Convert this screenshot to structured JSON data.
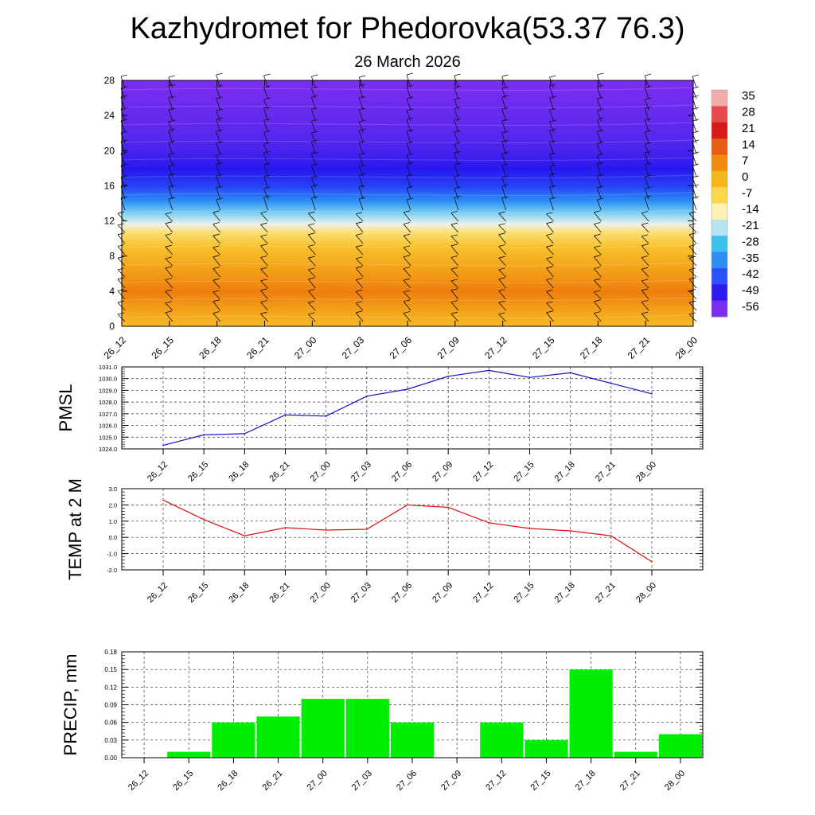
{
  "header": {
    "title": "Kazhydromet for Phedorovka(53.37 76.3)",
    "subtitle": "26 March 2026"
  },
  "time_labels": [
    "26_12",
    "26_15",
    "26_18",
    "26_21",
    "27_00",
    "27_03",
    "27_06",
    "27_09",
    "27_12",
    "27_15",
    "27_18",
    "27_21",
    "28_00"
  ],
  "chart_data": [
    {
      "type": "heatmap",
      "name": "cross-section",
      "xlabels": [
        "26_12",
        "26_15",
        "26_18",
        "26_21",
        "27_00",
        "27_03",
        "27_06",
        "27_09",
        "27_12",
        "27_15",
        "27_18",
        "27_21",
        "28_00"
      ],
      "ylim": [
        0,
        28
      ],
      "yticks": [
        "0",
        "4",
        "8",
        "12",
        "16",
        "20",
        "24",
        "28"
      ],
      "colorbar_labels": [
        "35",
        "28",
        "21",
        "14",
        "7",
        "0",
        "-7",
        "-14",
        "-21",
        "-28",
        "-35",
        "-42",
        "-49",
        "-56"
      ],
      "colorbar_colors": [
        "#f2aaaa",
        "#e84a4a",
        "#d61919",
        "#e85c10",
        "#f38a12",
        "#f7b61b",
        "#fad84a",
        "#fdf2b4",
        "#b5e4f0",
        "#3cc0ec",
        "#2a8ff0",
        "#2b52f8",
        "#2c1cf0",
        "#7d2df0"
      ],
      "colormap": "#7d2df0"
    },
    {
      "type": "line",
      "name": "pmsl",
      "ylabel": "PMSL",
      "categories": [
        "26_12",
        "26_15",
        "26_18",
        "26_21",
        "27_00",
        "27_03",
        "27_06",
        "27_09",
        "27_12",
        "27_15",
        "27_18",
        "27_21",
        "28_00"
      ],
      "values": [
        1024.3,
        1025.2,
        1025.3,
        1026.9,
        1026.8,
        1028.5,
        1029.1,
        1030.2,
        1030.7,
        1030.1,
        1030.5,
        1029.6,
        1028.7
      ],
      "ylim": [
        1024.0,
        1031.0
      ],
      "yticks": [
        "1024.0",
        "1025.0",
        "1026.0",
        "1027.0",
        "1028.0",
        "1029.0",
        "1030.0",
        "1031.0"
      ],
      "color": "#1010cc"
    },
    {
      "type": "line",
      "name": "temp",
      "ylabel": "TEMP at 2 M",
      "categories": [
        "26_12",
        "26_15",
        "26_18",
        "26_21",
        "27_00",
        "27_03",
        "27_06",
        "27_09",
        "27_12",
        "27_15",
        "27_18",
        "27_21",
        "28_00"
      ],
      "values": [
        2.3,
        1.1,
        0.1,
        0.6,
        0.45,
        0.5,
        2.0,
        1.85,
        0.9,
        0.55,
        0.4,
        0.1,
        -1.5
      ],
      "ylim": [
        -2.0,
        3.0
      ],
      "yticks": [
        "-2.0",
        "-1.0",
        "0.0",
        "1.0",
        "2.0",
        "3.0"
      ],
      "color": "#e01010"
    },
    {
      "type": "bar",
      "name": "precip",
      "ylabel": "PRECIP, mm",
      "categories": [
        "26_12",
        "26_15",
        "26_18",
        "26_21",
        "27_00",
        "27_03",
        "27_06",
        "27_09",
        "27_12",
        "27_15",
        "27_18",
        "27_21",
        "28_00"
      ],
      "values": [
        0.0,
        0.01,
        0.06,
        0.07,
        0.1,
        0.1,
        0.06,
        0.0,
        0.06,
        0.03,
        0.15,
        0.01,
        0.04
      ],
      "ylim": [
        0.0,
        0.18
      ],
      "yticks": [
        "0.00",
        "0.03",
        "0.06",
        "0.09",
        "0.12",
        "0.15",
        "0.18"
      ],
      "color": "#00ee00"
    }
  ]
}
